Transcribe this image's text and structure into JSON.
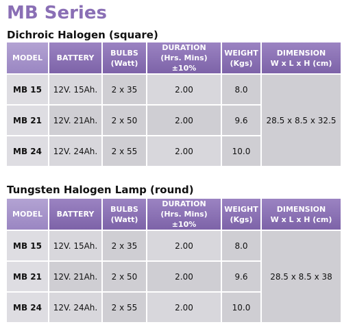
{
  "title": "MB Series",
  "sections": [
    {
      "heading": "Dichroic Halogen (square)",
      "table": {
        "header": [
          [
            "MODEL"
          ],
          [
            "BATTERY"
          ],
          [
            "BULBS",
            "(Watt)"
          ],
          [
            "DURATION",
            "(Hrs. Mins) ±10%"
          ],
          [
            "WEIGHT",
            "(Kgs)"
          ],
          [
            "DIMENSION",
            "W x L x H (cm)"
          ]
        ],
        "rows": [
          [
            "MB 15",
            "12V. 15Ah.",
            "2 x 35",
            "2.00",
            "8.0"
          ],
          [
            "MB 21",
            "12V. 21Ah.",
            "2 x 50",
            "2.00",
            "9.6"
          ],
          [
            "MB 24",
            "12V. 24Ah.",
            "2 x 55",
            "2.00",
            "10.0"
          ]
        ],
        "dimension": "28.5 x 8.5 x 32.5"
      }
    },
    {
      "heading": "Tungsten Halogen Lamp (round)",
      "table": {
        "header": [
          [
            "MODEL"
          ],
          [
            "BATTERY"
          ],
          [
            "BULBS",
            "(Watt)"
          ],
          [
            "DURATION",
            "(Hrs. Mins) ±10%"
          ],
          [
            "WEIGHT",
            "(Kgs)"
          ],
          [
            "DIMENSION",
            "W x L x H (cm)"
          ]
        ],
        "rows": [
          [
            "MB 15",
            "12V. 15Ah.",
            "2 x 35",
            "2.00",
            "8.0"
          ],
          [
            "MB 21",
            "12V. 21Ah.",
            "2 x 50",
            "2.00",
            "9.6"
          ],
          [
            "MB 24",
            "12V. 24Ah.",
            "2 x 55",
            "2.00",
            "10.0"
          ]
        ],
        "dimension": "28.5 x 8.5 x 38"
      }
    }
  ]
}
